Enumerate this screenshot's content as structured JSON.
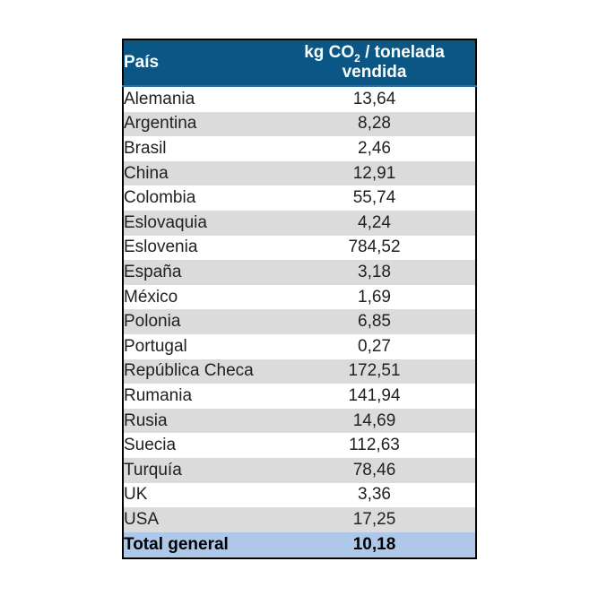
{
  "table": {
    "header": {
      "col1": "País",
      "col2_prefix": "kg CO",
      "col2_sub": "2",
      "col2_rest": " / tonelada",
      "col2_line2": "vendida"
    },
    "rows": [
      {
        "country": "Alemania",
        "value": "13,64"
      },
      {
        "country": "Argentina",
        "value": "8,28"
      },
      {
        "country": "Brasil",
        "value": "2,46"
      },
      {
        "country": "China",
        "value": "12,91"
      },
      {
        "country": "Colombia",
        "value": "55,74"
      },
      {
        "country": "Eslovaquia",
        "value": "4,24"
      },
      {
        "country": "Eslovenia",
        "value": "784,52"
      },
      {
        "country": "España",
        "value": "3,18"
      },
      {
        "country": "México",
        "value": "1,69"
      },
      {
        "country": "Polonia",
        "value": "6,85"
      },
      {
        "country": "Portugal",
        "value": "0,27"
      },
      {
        "country": "República Checa",
        "value": "172,51"
      },
      {
        "country": "Rumania",
        "value": "141,94"
      },
      {
        "country": "Rusia",
        "value": "14,69"
      },
      {
        "country": "Suecia",
        "value": "112,63"
      },
      {
        "country": "Turquía",
        "value": "78,46"
      },
      {
        "country": "UK",
        "value": "3,36"
      },
      {
        "country": "USA",
        "value": "17,25"
      }
    ],
    "total": {
      "label": "Total general",
      "value": "10,18"
    }
  },
  "colors": {
    "header_bg": "#0a5786",
    "header_text": "#ffffff",
    "header_bottom_edge": "#2a6ea6",
    "row_bg": "#ffffff",
    "row_alt_bg": "#dbdbdb",
    "total_bg": "#adc8e9",
    "body_text": "#212121",
    "border": "#000000"
  },
  "chart_data": {
    "type": "table",
    "title": "",
    "columns": [
      "País",
      "kg CO₂ / tonelada vendida"
    ],
    "rows": [
      [
        "Alemania",
        13.64
      ],
      [
        "Argentina",
        8.28
      ],
      [
        "Brasil",
        2.46
      ],
      [
        "China",
        12.91
      ],
      [
        "Colombia",
        55.74
      ],
      [
        "Eslovaquia",
        4.24
      ],
      [
        "Eslovenia",
        784.52
      ],
      [
        "España",
        3.18
      ],
      [
        "México",
        1.69
      ],
      [
        "Polonia",
        6.85
      ],
      [
        "Portugal",
        0.27
      ],
      [
        "República Checa",
        172.51
      ],
      [
        "Rumania",
        141.94
      ],
      [
        "Rusia",
        14.69
      ],
      [
        "Suecia",
        112.63
      ],
      [
        "Turquía",
        78.46
      ],
      [
        "UK",
        3.36
      ],
      [
        "USA",
        17.25
      ]
    ],
    "total": [
      "Total general",
      10.18
    ],
    "notes": "decimal comma formatting, alternating row banding, bold total row"
  }
}
